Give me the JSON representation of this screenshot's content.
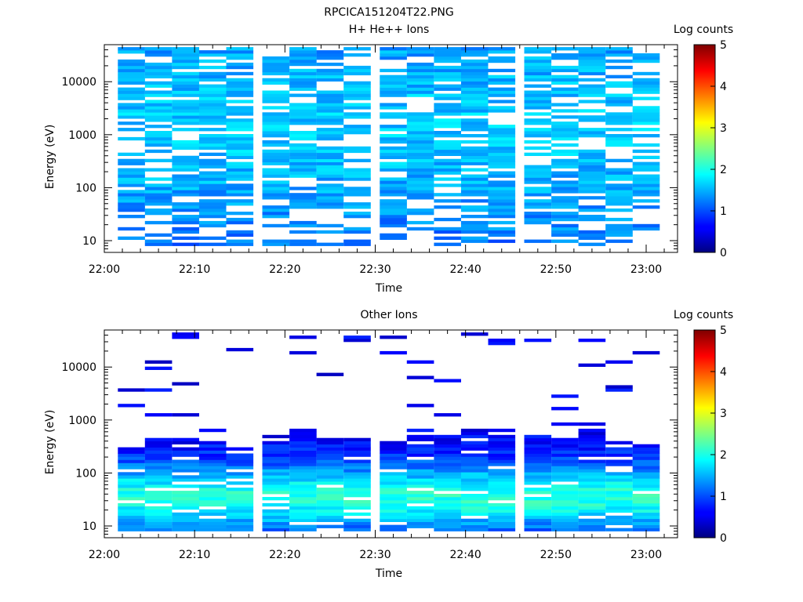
{
  "figure_title": "RPCICA151204T22.PNG",
  "chart_data": [
    {
      "type": "heatmap",
      "title": "H+ He++ Ions",
      "xlabel": "Time",
      "ylabel": "Energy (eV)",
      "y_scale": "log",
      "ylim": [
        6,
        50000
      ],
      "xlim": [
        "22:00",
        "23:04"
      ],
      "x_ticks": [
        "22:00",
        "22:10",
        "22:20",
        "22:30",
        "22:40",
        "22:50",
        "23:00"
      ],
      "y_ticks": [
        "10",
        "100",
        "1000",
        "10000"
      ],
      "time_columns": [
        "22:03",
        "22:06",
        "22:09",
        "22:12",
        "22:15",
        "22:19",
        "22:22",
        "22:25",
        "22:28",
        "22:32",
        "22:35",
        "22:38",
        "22:41",
        "22:44",
        "22:48",
        "22:51",
        "22:54",
        "22:57",
        "23:00"
      ],
      "colorbar": {
        "label": "Log counts",
        "min": 0,
        "max": 5,
        "ticks": [
          "0",
          "1",
          "2",
          "3",
          "4",
          "5"
        ]
      },
      "pattern": {
        "seed": 11,
        "e_min": 8,
        "e_max": 45000,
        "drop": 0.28,
        "drop_low": 0.55,
        "low_e": 40,
        "base": 0.45,
        "spread": 0.5,
        "peak": 0.9,
        "peak_e": 1500,
        "peak_w": 2.0,
        "cutoffs": []
      }
    },
    {
      "type": "heatmap",
      "title": "Other Ions",
      "xlabel": "Time",
      "ylabel": "Energy (eV)",
      "y_scale": "log",
      "ylim": [
        6,
        50000
      ],
      "xlim": [
        "22:00",
        "23:04"
      ],
      "x_ticks": [
        "22:00",
        "22:10",
        "22:20",
        "22:30",
        "22:40",
        "22:50",
        "23:00"
      ],
      "y_ticks": [
        "10",
        "100",
        "1000",
        "10000"
      ],
      "time_columns": [
        "22:03",
        "22:06",
        "22:09",
        "22:12",
        "22:15",
        "22:19",
        "22:22",
        "22:25",
        "22:28",
        "22:32",
        "22:35",
        "22:38",
        "22:41",
        "22:44",
        "22:48",
        "22:51",
        "22:54",
        "22:57",
        "23:00"
      ],
      "colorbar": {
        "label": "Log counts",
        "min": 0,
        "max": 5,
        "ticks": [
          "0",
          "1",
          "2",
          "3",
          "4",
          "5"
        ]
      },
      "pattern": {
        "seed": 29,
        "e_min": 8,
        "e_max": 45000,
        "drop": 0.12,
        "drop_low": 0.0,
        "low_e": 10,
        "base": 0.3,
        "spread": 0.5,
        "peak": 1.5,
        "peak_e": 35,
        "peak_w": 0.45,
        "cutoffs": [
          350,
          550,
          480,
          450,
          320,
          380,
          650,
          500,
          450,
          420,
          520,
          500,
          650,
          600,
          550,
          450,
          700,
          380,
          350
        ],
        "sparse_high": 0.93
      }
    }
  ]
}
